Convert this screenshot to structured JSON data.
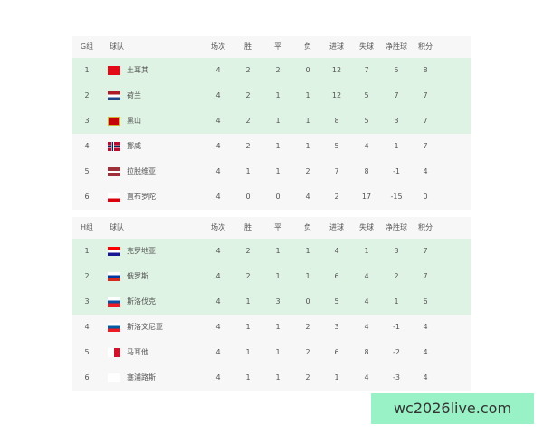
{
  "columns": [
    "球队",
    "场次",
    "胜",
    "平",
    "负",
    "进球",
    "失球",
    "净胜球",
    "积分"
  ],
  "groups": [
    {
      "name": "G组",
      "rows": [
        [
          "1",
          "土耳其",
          "4",
          "2",
          "2",
          "0",
          "12",
          "7",
          "5",
          "8"
        ],
        [
          "2",
          "荷兰",
          "4",
          "2",
          "1",
          "1",
          "12",
          "5",
          "7",
          "7"
        ],
        [
          "3",
          "黑山",
          "4",
          "2",
          "1",
          "1",
          "8",
          "5",
          "3",
          "7"
        ],
        [
          "4",
          "挪威",
          "4",
          "2",
          "1",
          "1",
          "5",
          "4",
          "1",
          "7"
        ],
        [
          "5",
          "拉脱维亚",
          "4",
          "1",
          "1",
          "2",
          "7",
          "8",
          "-1",
          "4"
        ],
        [
          "6",
          "直布罗陀",
          "4",
          "0",
          "0",
          "4",
          "2",
          "17",
          "-15",
          "0"
        ]
      ],
      "flags": [
        "turkey",
        "netherlands",
        "montenegro",
        "norway",
        "latvia",
        "gibraltar"
      ]
    },
    {
      "name": "H组",
      "rows": [
        [
          "1",
          "克罗地亚",
          "4",
          "2",
          "1",
          "1",
          "4",
          "1",
          "3",
          "7"
        ],
        [
          "2",
          "俄罗斯",
          "4",
          "2",
          "1",
          "1",
          "6",
          "4",
          "2",
          "7"
        ],
        [
          "3",
          "斯洛伐克",
          "4",
          "1",
          "3",
          "0",
          "5",
          "4",
          "1",
          "6"
        ],
        [
          "4",
          "斯洛文尼亚",
          "4",
          "1",
          "1",
          "2",
          "3",
          "4",
          "-1",
          "4"
        ],
        [
          "5",
          "马耳他",
          "4",
          "1",
          "1",
          "2",
          "6",
          "8",
          "-2",
          "4"
        ],
        [
          "6",
          "塞浦路斯",
          "4",
          "1",
          "1",
          "2",
          "1",
          "4",
          "-3",
          "4"
        ]
      ],
      "flags": [
        "croatia",
        "russia",
        "slovakia",
        "slovenia",
        "malta",
        "cyprus"
      ]
    }
  ],
  "qualified_color": "#def3e3",
  "watermark": "wc2026live.com"
}
